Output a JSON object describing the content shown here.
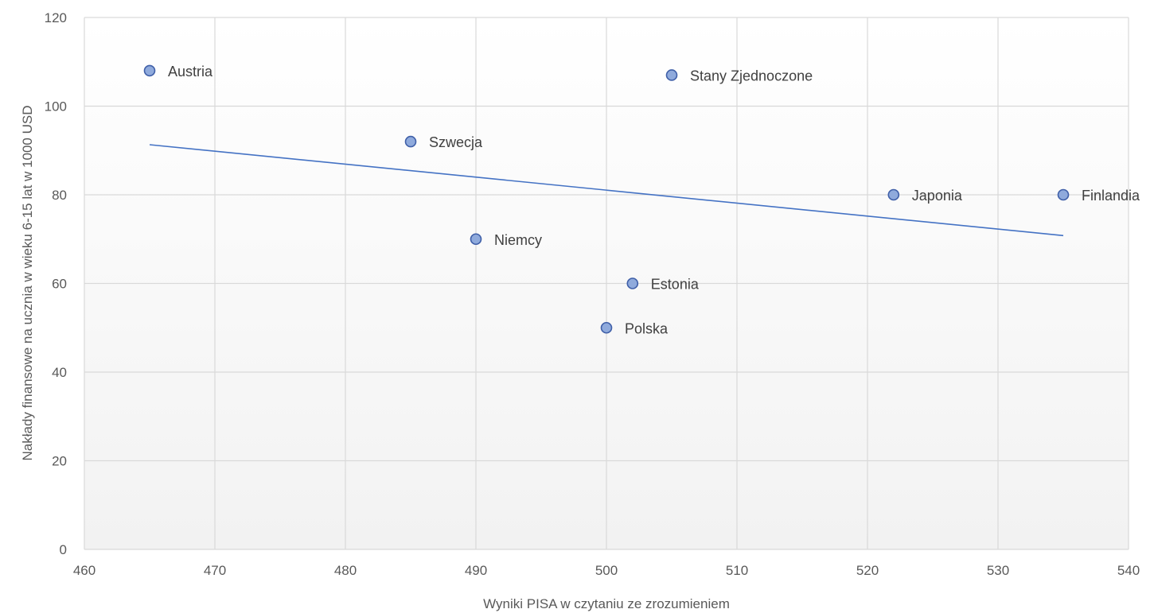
{
  "chart_data": {
    "type": "scatter",
    "title": "",
    "xlabel": "Wyniki PISA w czytaniu ze zrozumieniem",
    "ylabel": "Nakłady finansowe na ucznia w wieku 6-15 lat w 1000 USD",
    "xlim": [
      460,
      540
    ],
    "ylim": [
      0,
      120
    ],
    "x_ticks": [
      460,
      470,
      480,
      490,
      500,
      510,
      520,
      530,
      540
    ],
    "y_ticks": [
      0,
      20,
      40,
      60,
      80,
      100,
      120
    ],
    "grid": true,
    "legend": "none",
    "points": [
      {
        "label": "Austria",
        "x": 465,
        "y": 108
      },
      {
        "label": "Stany Zjednoczone",
        "x": 505,
        "y": 107
      },
      {
        "label": "Szwecja",
        "x": 485,
        "y": 92
      },
      {
        "label": "Japonia",
        "x": 522,
        "y": 80
      },
      {
        "label": "Finlandia",
        "x": 535,
        "y": 80
      },
      {
        "label": "Niemcy",
        "x": 490,
        "y": 70
      },
      {
        "label": "Estonia",
        "x": 502,
        "y": 60
      },
      {
        "label": "Polska",
        "x": 500,
        "y": 50
      }
    ],
    "trendline": {
      "type": "linear",
      "x": [
        465,
        535
      ],
      "y": [
        91.3,
        70.8
      ]
    },
    "colors": {
      "marker_fill": "#8FAADC",
      "marker_stroke": "#3F5FA8",
      "trendline": "#4472C4",
      "grid": "#D9D9D9",
      "plot_bg_top": "#FFFFFF",
      "plot_bg_bottom": "#F2F2F2"
    }
  }
}
